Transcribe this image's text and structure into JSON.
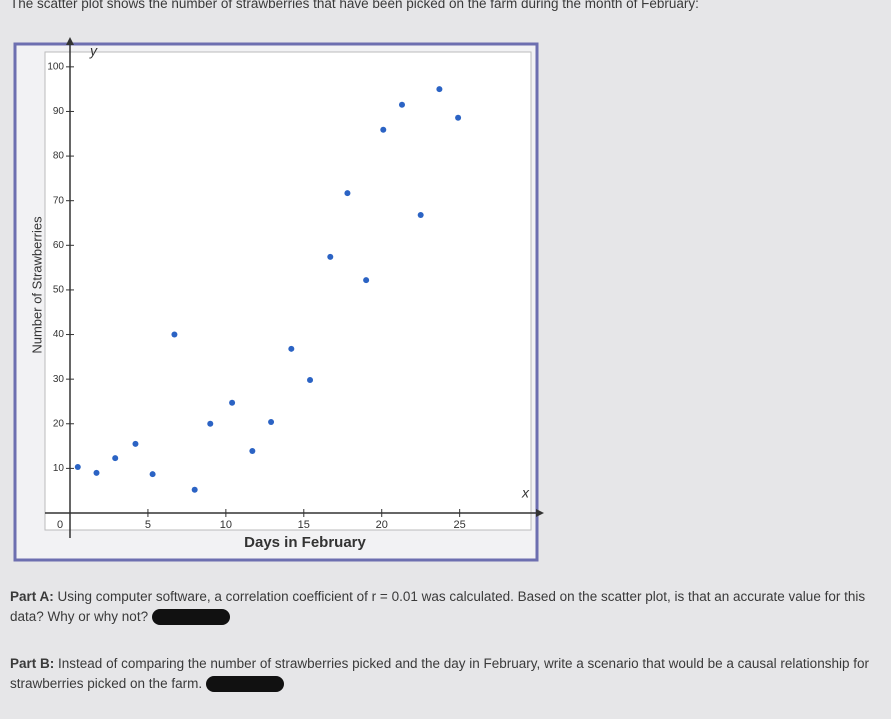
{
  "prompt": "The scatter plot shows the number of strawberries that have been picked on the farm during the month of February:",
  "chart_data": {
    "type": "scatter",
    "x_label": "Days in February",
    "y_label": "Number of Strawberries",
    "x_axis_name": "x",
    "y_axis_name": "y",
    "x": [
      0.5,
      1.7,
      2.9,
      4.2,
      5.3,
      6.7,
      8,
      9,
      10.4,
      11.7,
      12.9,
      14.2,
      15.4,
      16.7,
      17.8,
      19,
      20.1,
      21.3,
      22.5,
      23.7,
      24.9
    ],
    "values": [
      10.3,
      9,
      12.3,
      15.5,
      8.7,
      40,
      5.2,
      20,
      24.7,
      13.9,
      20.4,
      36.8,
      29.8,
      57.4,
      71.7,
      52.2,
      85.9,
      91.5,
      66.8,
      95,
      88.6
    ],
    "color": "#2b63c4",
    "xlim": [
      0,
      29
    ],
    "ylim": [
      0,
      104
    ],
    "xticks": [
      0,
      5,
      10,
      15,
      20,
      25
    ],
    "yticks": [
      10,
      20,
      30,
      40,
      50,
      60,
      70,
      80,
      90,
      100
    ]
  },
  "part_a": {
    "label": "Part A:",
    "text": "Using computer software, a correlation coefficient of r = 0.01 was calculated. Based on the scatter plot, is that an accurate value for this data? Why or why not?"
  },
  "part_b": {
    "label": "Part B:",
    "text": "Instead of comparing the number of strawberries picked and the day in February, write a scenario that would be a causal relationship for strawberries picked on the farm."
  }
}
